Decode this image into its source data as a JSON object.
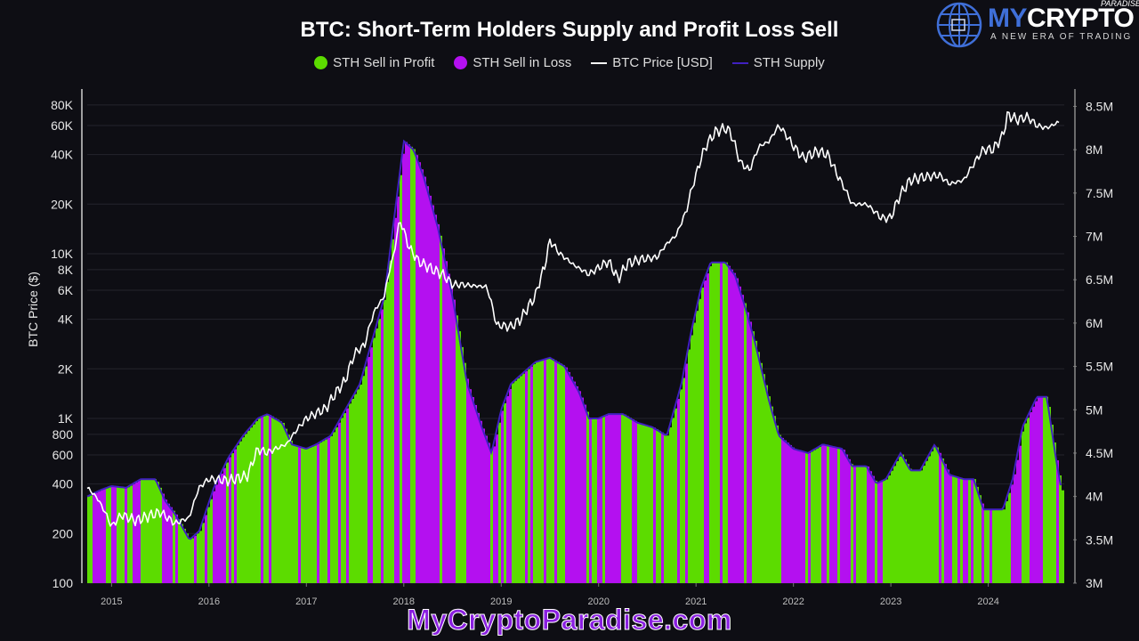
{
  "logo": {
    "brand_my": "MY",
    "brand_crypto": "CRYPTO",
    "paradise": "PARADISE",
    "tagline": "A NEW ERA OF TRADING",
    "icon": "globe-icon"
  },
  "watermark": "MyCryptoParadise.com",
  "colors": {
    "background": "#0e0e14",
    "profit": "#5cdc00",
    "loss": "#b410f0",
    "price": "#ffffff",
    "supply": "#4020c0"
  },
  "chart_data": {
    "type": "bar",
    "title": "BTC: Short-Term Holders Supply and Profit Loss Sell",
    "legend": [
      "STH Sell in Profit",
      "STH Sell in Loss",
      "BTC Price [USD]",
      "STH Supply"
    ],
    "legend_position": "top-center",
    "ylabel": "BTC Price ($)",
    "y_scale": "log",
    "ylim": [
      100,
      100000
    ],
    "yticks": [
      "80K",
      "60K",
      "40K",
      "20K",
      "10K",
      "8K",
      "6K",
      "4K",
      "2K",
      "1K",
      "800",
      "600",
      "400",
      "200",
      "100"
    ],
    "y2lim_millions": [
      3.0,
      8.7
    ],
    "y2ticks": [
      "8.5M",
      "8M",
      "7.5M",
      "7M",
      "6.5M",
      "6M",
      "5.5M",
      "5M",
      "4.5M",
      "4M",
      "3.5M",
      "3M"
    ],
    "xticks": [
      "2015",
      "2016",
      "2017",
      "2018",
      "2019",
      "2020",
      "2021",
      "2022",
      "2023",
      "2024"
    ],
    "xlim": [
      2014.75,
      2024.78
    ],
    "grid": true,
    "sth_supply_millions": {
      "x": [
        2014.75,
        2014.9,
        2015.0,
        2015.15,
        2015.3,
        2015.45,
        2015.55,
        2015.65,
        2015.75,
        2015.8,
        2015.9,
        2016.05,
        2016.2,
        2016.35,
        2016.5,
        2016.6,
        2016.75,
        2016.85,
        2017.0,
        2017.1,
        2017.25,
        2017.4,
        2017.55,
        2017.65,
        2017.8,
        2017.9,
        2018.0,
        2018.1,
        2018.2,
        2018.35,
        2018.5,
        2018.65,
        2018.8,
        2018.9,
        2019.0,
        2019.1,
        2019.2,
        2019.35,
        2019.5,
        2019.65,
        2019.8,
        2019.9,
        2020.0,
        2020.1,
        2020.25,
        2020.4,
        2020.55,
        2020.7,
        2020.85,
        2020.95,
        2021.05,
        2021.15,
        2021.3,
        2021.4,
        2021.5,
        2021.6,
        2021.75,
        2021.85,
        2022.0,
        2022.15,
        2022.3,
        2022.5,
        2022.6,
        2022.75,
        2022.85,
        2022.95,
        2023.1,
        2023.2,
        2023.3,
        2023.45,
        2023.6,
        2023.75,
        2023.85,
        2023.95,
        2024.05,
        2024.15,
        2024.25,
        2024.35,
        2024.5,
        2024.6,
        2024.7,
        2024.78
      ],
      "y": [
        4.0,
        4.08,
        4.12,
        4.1,
        4.2,
        4.2,
        3.95,
        3.8,
        3.6,
        3.5,
        3.6,
        4.1,
        4.45,
        4.7,
        4.9,
        4.95,
        4.85,
        4.6,
        4.55,
        4.6,
        4.7,
        5.0,
        5.3,
        5.7,
        6.3,
        7.2,
        8.1,
        8.0,
        7.7,
        7.1,
        6.3,
        5.3,
        4.8,
        4.5,
        5.0,
        5.3,
        5.4,
        5.55,
        5.6,
        5.5,
        5.2,
        4.9,
        4.9,
        4.95,
        4.95,
        4.85,
        4.8,
        4.7,
        5.3,
        5.9,
        6.4,
        6.7,
        6.7,
        6.55,
        6.2,
        5.8,
        5.1,
        4.7,
        4.55,
        4.5,
        4.6,
        4.55,
        4.35,
        4.35,
        4.15,
        4.2,
        4.5,
        4.3,
        4.3,
        4.6,
        4.25,
        4.2,
        4.2,
        3.85,
        3.85,
        3.85,
        4.2,
        4.8,
        5.15,
        5.15,
        4.4,
        3.9
      ]
    },
    "btc_price_usd": {
      "x": [
        2014.75,
        2014.85,
        2015.0,
        2015.1,
        2015.25,
        2015.5,
        2015.65,
        2015.8,
        2015.9,
        2016.0,
        2016.2,
        2016.4,
        2016.5,
        2016.6,
        2016.8,
        2017.0,
        2017.2,
        2017.4,
        2017.5,
        2017.6,
        2017.7,
        2017.8,
        2017.9,
        2017.96,
        2018.05,
        2018.15,
        2018.3,
        2018.4,
        2018.5,
        2018.6,
        2018.7,
        2018.85,
        2018.95,
        2019.1,
        2019.2,
        2019.35,
        2019.45,
        2019.5,
        2019.6,
        2019.75,
        2019.9,
        2020.1,
        2020.2,
        2020.3,
        2020.45,
        2020.6,
        2020.7,
        2020.8,
        2020.9,
        2021.0,
        2021.1,
        2021.2,
        2021.3,
        2021.35,
        2021.45,
        2021.55,
        2021.65,
        2021.75,
        2021.85,
        2022.0,
        2022.1,
        2022.25,
        2022.35,
        2022.45,
        2022.6,
        2022.75,
        2022.9,
        2023.0,
        2023.1,
        2023.2,
        2023.3,
        2023.5,
        2023.6,
        2023.75,
        2023.85,
        2023.95,
        2024.05,
        2024.15,
        2024.2,
        2024.3,
        2024.4,
        2024.5,
        2024.6,
        2024.7,
        2024.78
      ],
      "y": [
        380,
        330,
        220,
        260,
        240,
        270,
        230,
        250,
        380,
        430,
        420,
        450,
        650,
        620,
        700,
        1000,
        1150,
        1700,
        2500,
        2800,
        4500,
        5500,
        10000,
        16000,
        11000,
        9000,
        8000,
        7500,
        6500,
        6500,
        6400,
        6300,
        3700,
        3600,
        4000,
        5500,
        8500,
        12000,
        10000,
        8500,
        7500,
        9000,
        7000,
        8800,
        9300,
        9500,
        11500,
        13000,
        18000,
        30000,
        45000,
        55000,
        58000,
        55000,
        36000,
        32000,
        45000,
        48000,
        60000,
        45000,
        38000,
        42000,
        40000,
        30000,
        20000,
        20000,
        16500,
        16500,
        23000,
        28000,
        29000,
        30000,
        26500,
        28000,
        35000,
        43000,
        43000,
        52000,
        70000,
        65000,
        68000,
        60000,
        58000,
        62000,
        65000
      ]
    }
  }
}
